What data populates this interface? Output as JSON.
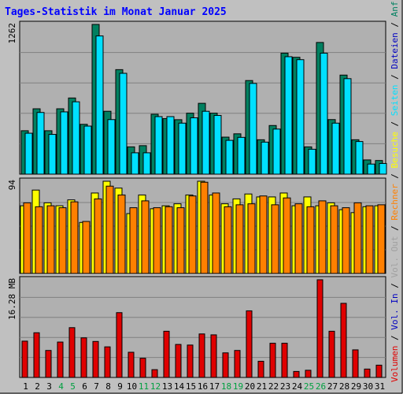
{
  "chart_data": [
    {
      "type": "bar",
      "panel": "requests",
      "title": "Tages-Statistik im Monat Januar 2025",
      "ylabel": "1262",
      "ylim": [
        0,
        1262
      ],
      "grid": true,
      "categories": [
        "1",
        "2",
        "3",
        "4",
        "5",
        "6",
        "7",
        "8",
        "9",
        "10",
        "11",
        "12",
        "13",
        "14",
        "15",
        "16",
        "17",
        "18",
        "19",
        "20",
        "21",
        "22",
        "23",
        "24",
        "25",
        "26",
        "27",
        "28",
        "29",
        "30",
        "31"
      ],
      "weekend_days": [
        "4",
        "5",
        "11",
        "12",
        "18",
        "19",
        "25",
        "26"
      ],
      "series": [
        {
          "name": "Anfragen",
          "color": "#008060",
          "values": [
            366,
            551,
            366,
            551,
            642,
            420,
            1262,
            530,
            881,
            230,
            240,
            505,
            468,
            459,
            514,
            597,
            514,
            312,
            340,
            789,
            290,
            410,
            1020,
            985,
            230,
            1110,
            460,
            835,
            290,
            120,
            115
          ]
        },
        {
          "name": "Dateien",
          "color": "#0000c0",
          "values": [
            330,
            500,
            305,
            505,
            580,
            385,
            500,
            440,
            440,
            180,
            180,
            460,
            450,
            410,
            470,
            500,
            480,
            270,
            290,
            700,
            260,
            350,
            900,
            930,
            200,
            760,
            400,
            750,
            270,
            80,
            80
          ]
        },
        {
          "name": "Seiten",
          "color": "#00e0ff",
          "values": [
            345,
            520,
            335,
            525,
            610,
            405,
            1165,
            460,
            850,
            180,
            180,
            485,
            485,
            430,
            475,
            530,
            495,
            285,
            310,
            765,
            270,
            380,
            990,
            965,
            210,
            1020,
            430,
            805,
            275,
            85,
            90
          ]
        }
      ]
    },
    {
      "type": "bar",
      "panel": "visits",
      "ylabel": "94",
      "ylim": [
        0,
        94
      ],
      "grid": true,
      "categories": [
        "1",
        "2",
        "3",
        "4",
        "5",
        "6",
        "7",
        "8",
        "9",
        "10",
        "11",
        "12",
        "13",
        "14",
        "15",
        "16",
        "17",
        "18",
        "19",
        "20",
        "21",
        "22",
        "23",
        "24",
        "25",
        "26",
        "27",
        "28",
        "29",
        "30",
        "31"
      ],
      "series": [
        {
          "name": "Besuche",
          "color": "#ffff00",
          "values": [
            69,
            85,
            72,
            69,
            75,
            52,
            82,
            94,
            87,
            61,
            80,
            66,
            69,
            71,
            80,
            94,
            80,
            71,
            76,
            81,
            78,
            78,
            82,
            69,
            78,
            69,
            72,
            65,
            62,
            68,
            69
          ]
        },
        {
          "name": "Rechner",
          "color": "#ff8000",
          "values": [
            72,
            68,
            69,
            67,
            73,
            53,
            76,
            89,
            80,
            67,
            74,
            67,
            68,
            67,
            79,
            93,
            82,
            68,
            70,
            71,
            79,
            70,
            77,
            71,
            68,
            74,
            69,
            67,
            72,
            69,
            70
          ]
        }
      ]
    },
    {
      "type": "bar",
      "panel": "volume",
      "ylabel": "16.28 MB",
      "ylim": [
        0,
        16.28
      ],
      "grid": true,
      "categories": [
        "1",
        "2",
        "3",
        "4",
        "5",
        "6",
        "7",
        "8",
        "9",
        "10",
        "11",
        "12",
        "13",
        "14",
        "15",
        "16",
        "17",
        "18",
        "19",
        "20",
        "21",
        "22",
        "23",
        "24",
        "25",
        "26",
        "27",
        "28",
        "29",
        "30",
        "31"
      ],
      "series": [
        {
          "name": "Volumen",
          "color": "#e00000",
          "values": [
            6.05,
            7.45,
            4.5,
            5.9,
            8.3,
            6.6,
            6.0,
            5.1,
            10.8,
            4.2,
            3.2,
            1.3,
            7.7,
            5.5,
            5.4,
            7.25,
            7.1,
            4.1,
            4.5,
            11.1,
            2.7,
            5.7,
            5.7,
            1.0,
            1.2,
            16.28,
            7.7,
            12.35,
            4.6,
            1.4,
            2.05
          ]
        }
      ]
    }
  ],
  "legend": {
    "labels": [
      "Anfragen",
      "Dateien",
      "Seiten",
      "Besuche",
      "Rechner",
      "Vol. Out",
      "Vol. In",
      "Volumen"
    ],
    "separator": " / "
  },
  "colors": {
    "background": "#c0c0c0",
    "plot": "#b0b0b0",
    "title": "#0000ff",
    "weekend_label": "#00a040",
    "vol_out": "#a0a0a0",
    "vol_in": "#0000c0"
  }
}
